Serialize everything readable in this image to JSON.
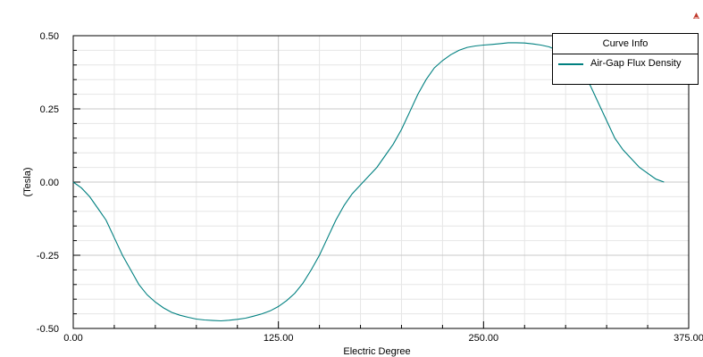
{
  "chart_data": {
    "type": "line",
    "xlabel": "Electric Degree",
    "ylabel": "(Tesla)",
    "xlim": [
      0,
      375
    ],
    "ylim": [
      -0.5,
      0.5
    ],
    "xticks": [
      0,
      125,
      250,
      375
    ],
    "xtick_labels": [
      "0.00",
      "125.00",
      "250.00",
      "375.00"
    ],
    "yticks": [
      0.5,
      0.25,
      0,
      -0.25,
      -0.5
    ],
    "ytick_labels": [
      "0.50",
      "0.25",
      "0.00",
      "-0.25",
      "-0.50"
    ],
    "grid": true,
    "legend": {
      "title": "Curve Info",
      "placement": "top-right"
    },
    "series": [
      {
        "name": "Air-Gap Flux Density",
        "color": "#008080",
        "x": [
          0,
          5,
          10,
          15,
          20,
          25,
          30,
          35,
          40,
          45,
          50,
          55,
          60,
          65,
          70,
          75,
          80,
          85,
          90,
          95,
          100,
          105,
          110,
          115,
          120,
          125,
          130,
          135,
          140,
          145,
          150,
          155,
          160,
          165,
          170,
          175,
          180,
          185,
          190,
          195,
          200,
          205,
          210,
          215,
          220,
          225,
          230,
          235,
          240,
          245,
          250,
          255,
          260,
          265,
          270,
          275,
          280,
          285,
          290,
          295,
          300,
          305,
          310,
          315,
          320,
          325,
          330,
          335,
          340,
          345,
          350,
          355,
          360
        ],
        "y": [
          0.0,
          -0.02,
          -0.05,
          -0.09,
          -0.13,
          -0.19,
          -0.25,
          -0.3,
          -0.35,
          -0.385,
          -0.41,
          -0.43,
          -0.445,
          -0.455,
          -0.462,
          -0.468,
          -0.471,
          -0.473,
          -0.474,
          -0.472,
          -0.469,
          -0.465,
          -0.458,
          -0.45,
          -0.44,
          -0.425,
          -0.405,
          -0.38,
          -0.345,
          -0.3,
          -0.25,
          -0.19,
          -0.13,
          -0.08,
          -0.04,
          -0.01,
          0.02,
          0.05,
          0.09,
          0.13,
          0.18,
          0.24,
          0.3,
          0.35,
          0.39,
          0.415,
          0.435,
          0.45,
          0.46,
          0.465,
          0.468,
          0.47,
          0.473,
          0.476,
          0.476,
          0.475,
          0.472,
          0.468,
          0.462,
          0.45,
          0.435,
          0.41,
          0.38,
          0.33,
          0.27,
          0.21,
          0.15,
          0.11,
          0.08,
          0.05,
          0.03,
          0.01,
          0.0
        ]
      }
    ]
  }
}
